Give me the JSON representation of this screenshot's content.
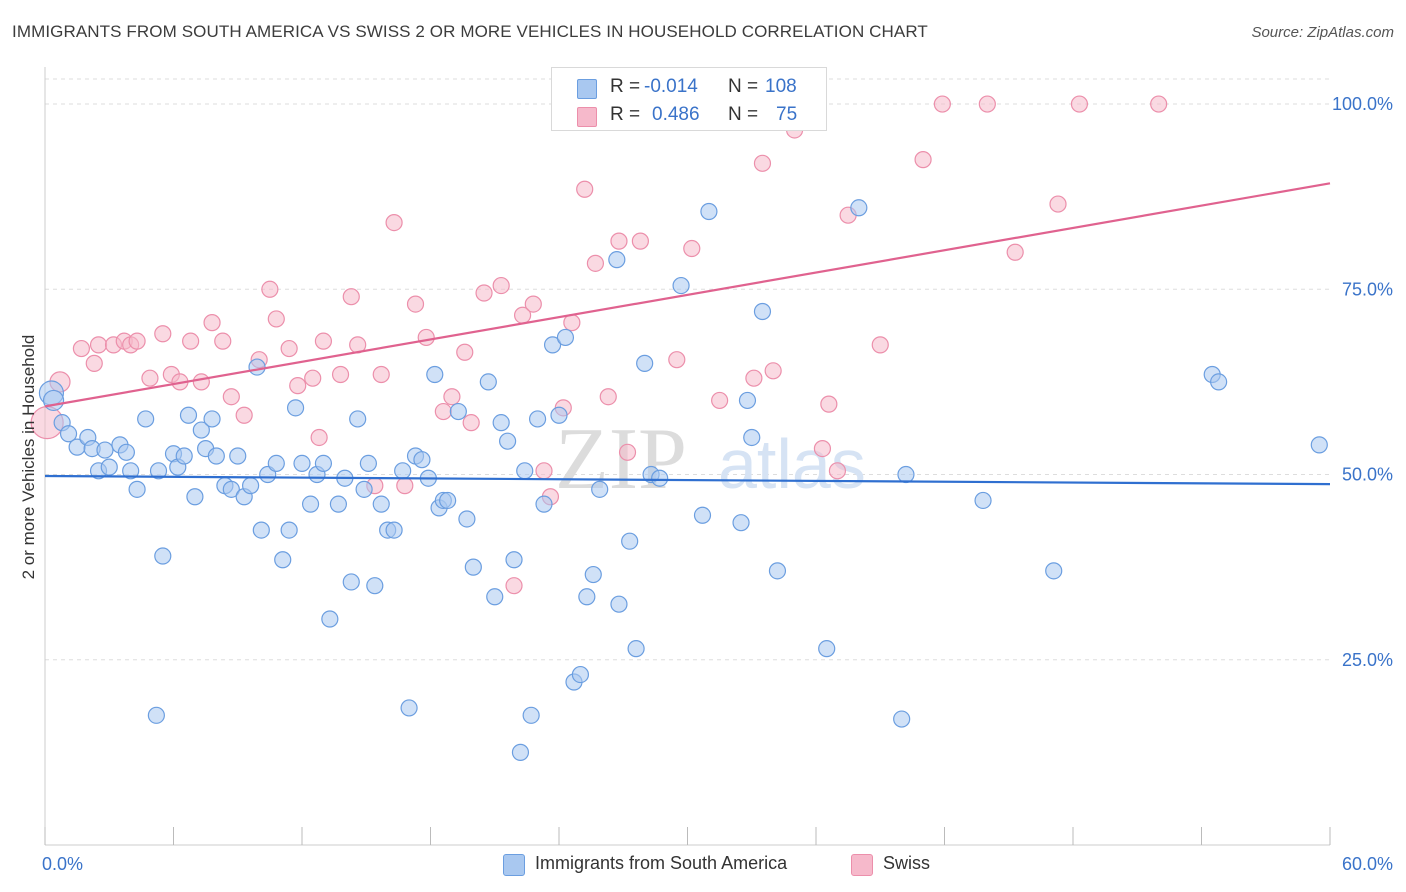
{
  "title": "IMMIGRANTS FROM SOUTH AMERICA VS SWISS 2 OR MORE VEHICLES IN HOUSEHOLD CORRELATION CHART",
  "source": "Source: ZipAtlas.com",
  "watermark": {
    "zip": "ZIP",
    "atlas": "atlas"
  },
  "stats": {
    "r_label": "R =",
    "n_label": "N =",
    "blue": {
      "r": "-0.014",
      "n": "108"
    },
    "pink": {
      "r": "0.486",
      "n": "75"
    }
  },
  "colors": {
    "blue_fill": "#a9c8f0",
    "blue_stroke": "#6b9ee0",
    "blue_line": "#2f6fd0",
    "pink_fill": "#f6b9cb",
    "pink_stroke": "#ec8fab",
    "pink_line": "#e0628f",
    "axis_text": "#3a73c9",
    "grid": "#dddddd"
  },
  "chart_data": {
    "type": "scatter",
    "title": "IMMIGRANTS FROM SOUTH AMERICA VS SWISS 2 OR MORE VEHICLES IN HOUSEHOLD CORRELATION CHART",
    "xlabel": "",
    "ylabel": "2 or more Vehicles in Household",
    "xlim": [
      0,
      60
    ],
    "ylim": [
      0,
      105
    ],
    "x_tick_labels": [
      "0.0%",
      "60.0%"
    ],
    "y_ticks": [
      25,
      50,
      75,
      100
    ],
    "y_tick_labels": [
      "25.0%",
      "50.0%",
      "75.0%",
      "100.0%"
    ],
    "grid": true,
    "legend_position": "bottom-center",
    "series": [
      {
        "name": "Immigrants from South America",
        "color": "#a9c8f0",
        "trend": {
          "x": [
            0,
            60
          ],
          "y": [
            49.8,
            48.7
          ]
        },
        "points": [
          [
            0.3,
            61.0,
            12
          ],
          [
            0.4,
            60.0,
            10
          ],
          [
            0.8,
            57.0,
            8
          ],
          [
            1.1,
            55.5,
            8
          ],
          [
            1.5,
            53.7,
            8
          ],
          [
            2.0,
            55.0,
            8
          ],
          [
            2.2,
            53.5,
            8
          ],
          [
            2.5,
            50.5,
            8
          ],
          [
            2.8,
            53.3,
            8
          ],
          [
            3.0,
            51.0,
            8
          ],
          [
            3.5,
            54.0,
            8
          ],
          [
            3.8,
            53.0,
            8
          ],
          [
            4.0,
            50.5,
            8
          ],
          [
            4.3,
            48.0,
            8
          ],
          [
            4.7,
            57.5,
            8
          ],
          [
            5.2,
            17.5,
            8
          ],
          [
            5.3,
            50.5,
            8
          ],
          [
            5.5,
            39.0,
            8
          ],
          [
            6.0,
            52.8,
            8
          ],
          [
            6.2,
            51.0,
            8
          ],
          [
            6.5,
            52.5,
            8
          ],
          [
            6.7,
            58.0,
            8
          ],
          [
            7.0,
            47.0,
            8
          ],
          [
            7.3,
            56.0,
            8
          ],
          [
            7.5,
            53.5,
            8
          ],
          [
            7.8,
            57.5,
            8
          ],
          [
            8.0,
            52.5,
            8
          ],
          [
            8.4,
            48.5,
            8
          ],
          [
            8.7,
            48.0,
            8
          ],
          [
            9.0,
            52.5,
            8
          ],
          [
            9.3,
            47.0,
            8
          ],
          [
            9.6,
            48.5,
            8
          ],
          [
            9.9,
            64.5,
            8
          ],
          [
            10.1,
            42.5,
            8
          ],
          [
            10.4,
            50.0,
            8
          ],
          [
            10.8,
            51.5,
            8
          ],
          [
            11.1,
            38.5,
            8
          ],
          [
            11.4,
            42.5,
            8
          ],
          [
            11.7,
            59.0,
            8
          ],
          [
            12.0,
            51.5,
            8
          ],
          [
            12.4,
            46.0,
            8
          ],
          [
            12.7,
            50.0,
            8
          ],
          [
            13.0,
            51.5,
            8
          ],
          [
            13.3,
            30.5,
            8
          ],
          [
            13.7,
            46.0,
            8
          ],
          [
            14.0,
            49.5,
            8
          ],
          [
            14.3,
            35.5,
            8
          ],
          [
            14.6,
            57.5,
            8
          ],
          [
            14.9,
            48.0,
            8
          ],
          [
            15.1,
            51.5,
            8
          ],
          [
            15.4,
            35.0,
            8
          ],
          [
            15.7,
            46.0,
            8
          ],
          [
            16.0,
            42.5,
            8
          ],
          [
            16.3,
            42.5,
            8
          ],
          [
            16.7,
            50.5,
            8
          ],
          [
            17.0,
            18.5,
            8
          ],
          [
            17.3,
            52.5,
            8
          ],
          [
            17.6,
            52.0,
            8
          ],
          [
            17.9,
            49.5,
            8
          ],
          [
            18.2,
            63.5,
            8
          ],
          [
            18.4,
            45.5,
            8
          ],
          [
            18.6,
            46.5,
            8
          ],
          [
            18.8,
            46.5,
            8
          ],
          [
            19.3,
            58.5,
            8
          ],
          [
            19.7,
            44.0,
            8
          ],
          [
            20.0,
            37.5,
            8
          ],
          [
            20.7,
            62.5,
            8
          ],
          [
            21.0,
            33.5,
            8
          ],
          [
            21.3,
            57.0,
            8
          ],
          [
            21.6,
            54.5,
            8
          ],
          [
            21.9,
            38.5,
            8
          ],
          [
            22.2,
            12.5,
            8
          ],
          [
            22.4,
            50.5,
            8
          ],
          [
            22.7,
            17.5,
            8
          ],
          [
            23.0,
            57.5,
            8
          ],
          [
            23.3,
            46.0,
            8
          ],
          [
            23.7,
            67.5,
            8
          ],
          [
            24.0,
            58.0,
            8
          ],
          [
            24.3,
            68.5,
            8
          ],
          [
            24.7,
            22.0,
            8
          ],
          [
            25.0,
            23.0,
            8
          ],
          [
            25.3,
            33.5,
            8
          ],
          [
            25.6,
            36.5,
            8
          ],
          [
            25.9,
            48.0,
            8
          ],
          [
            26.7,
            79.0,
            8
          ],
          [
            26.8,
            32.5,
            8
          ],
          [
            27.3,
            41.0,
            8
          ],
          [
            27.6,
            26.5,
            8
          ],
          [
            28.0,
            65.0,
            8
          ],
          [
            28.3,
            50.0,
            8
          ],
          [
            28.7,
            49.5,
            8
          ],
          [
            29.7,
            75.5,
            8
          ],
          [
            30.7,
            44.5,
            8
          ],
          [
            31.0,
            85.5,
            8
          ],
          [
            32.5,
            43.5,
            8
          ],
          [
            32.8,
            60.0,
            8
          ],
          [
            33.0,
            55.0,
            8
          ],
          [
            33.5,
            72.0,
            8
          ],
          [
            34.2,
            37.0,
            8
          ],
          [
            36.5,
            26.5,
            8
          ],
          [
            38.0,
            86.0,
            8
          ],
          [
            40.0,
            17.0,
            8
          ],
          [
            40.2,
            50.0,
            8
          ],
          [
            43.8,
            46.5,
            8
          ],
          [
            47.1,
            37.0,
            8
          ],
          [
            54.5,
            63.5,
            8
          ],
          [
            54.8,
            62.5,
            8
          ],
          [
            59.5,
            54.0,
            8
          ]
        ]
      },
      {
        "name": "Swiss",
        "color": "#f6b9cb",
        "trend": {
          "x": [
            0,
            60
          ],
          "y": [
            59.2,
            89.3
          ]
        },
        "points": [
          [
            0.1,
            57.0,
            16
          ],
          [
            0.7,
            62.5,
            10
          ],
          [
            1.7,
            67.0,
            8
          ],
          [
            2.3,
            65.0,
            8
          ],
          [
            2.5,
            67.5,
            8
          ],
          [
            3.2,
            67.5,
            8
          ],
          [
            3.7,
            68.0,
            8
          ],
          [
            4.0,
            67.5,
            8
          ],
          [
            4.3,
            68.0,
            8
          ],
          [
            4.9,
            63.0,
            8
          ],
          [
            5.5,
            69.0,
            8
          ],
          [
            5.9,
            63.5,
            8
          ],
          [
            6.3,
            62.5,
            8
          ],
          [
            6.8,
            68.0,
            8
          ],
          [
            7.3,
            62.5,
            8
          ],
          [
            7.8,
            70.5,
            8
          ],
          [
            8.3,
            68.0,
            8
          ],
          [
            8.7,
            60.5,
            8
          ],
          [
            9.3,
            58.0,
            8
          ],
          [
            10.0,
            65.5,
            8
          ],
          [
            10.5,
            75.0,
            8
          ],
          [
            10.8,
            71.0,
            8
          ],
          [
            11.4,
            67.0,
            8
          ],
          [
            11.8,
            62.0,
            8
          ],
          [
            12.5,
            63.0,
            8
          ],
          [
            12.8,
            55.0,
            8
          ],
          [
            13.0,
            68.0,
            8
          ],
          [
            13.8,
            63.5,
            8
          ],
          [
            14.3,
            74.0,
            8
          ],
          [
            14.6,
            67.5,
            8
          ],
          [
            15.4,
            48.5,
            8
          ],
          [
            15.7,
            63.5,
            8
          ],
          [
            16.3,
            84.0,
            8
          ],
          [
            16.8,
            48.5,
            8
          ],
          [
            17.3,
            73.0,
            8
          ],
          [
            17.8,
            68.5,
            8
          ],
          [
            18.6,
            58.5,
            8
          ],
          [
            19.0,
            60.5,
            8
          ],
          [
            19.6,
            66.5,
            8
          ],
          [
            19.9,
            57.0,
            8
          ],
          [
            20.5,
            74.5,
            8
          ],
          [
            21.3,
            75.5,
            8
          ],
          [
            21.9,
            35.0,
            8
          ],
          [
            22.3,
            71.5,
            8
          ],
          [
            22.8,
            73.0,
            8
          ],
          [
            23.3,
            50.5,
            8
          ],
          [
            23.6,
            47.0,
            8
          ],
          [
            24.2,
            59.0,
            8
          ],
          [
            24.6,
            70.5,
            8
          ],
          [
            25.2,
            88.5,
            8
          ],
          [
            25.7,
            78.5,
            8
          ],
          [
            26.3,
            60.5,
            8
          ],
          [
            26.8,
            81.5,
            8
          ],
          [
            27.2,
            53.0,
            8
          ],
          [
            27.8,
            81.5,
            8
          ],
          [
            29.5,
            65.5,
            8
          ],
          [
            30.2,
            80.5,
            8
          ],
          [
            31.5,
            60.0,
            8
          ],
          [
            32.0,
            100.0,
            8
          ],
          [
            33.1,
            63.0,
            8
          ],
          [
            33.5,
            92.0,
            8
          ],
          [
            34.0,
            64.0,
            8
          ],
          [
            35.0,
            96.5,
            8
          ],
          [
            36.3,
            53.5,
            8
          ],
          [
            36.6,
            59.5,
            8
          ],
          [
            37.0,
            50.5,
            8
          ],
          [
            37.5,
            85.0,
            8
          ],
          [
            39.0,
            67.5,
            8
          ],
          [
            41.0,
            92.5,
            8
          ],
          [
            41.9,
            100.0,
            8
          ],
          [
            44.0,
            100.0,
            8
          ],
          [
            45.3,
            80.0,
            8
          ],
          [
            47.3,
            86.5,
            8
          ],
          [
            48.3,
            100.0,
            8
          ],
          [
            52.0,
            100.0,
            8
          ]
        ]
      }
    ]
  }
}
